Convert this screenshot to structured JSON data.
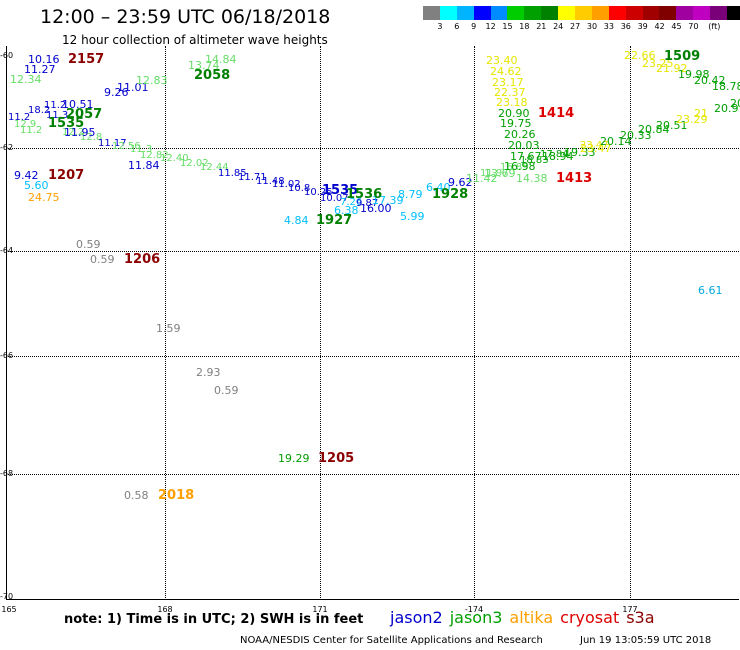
{
  "header": {
    "title": "12:00 – 23:59 UTC 06/18/2018",
    "subtitle": "12 hour collection of altimeter wave heights"
  },
  "colorbar": {
    "colors": [
      "#808080",
      "#00ffff",
      "#00b4ff",
      "#0000ff",
      "#008cff",
      "#00cd00",
      "#00a000",
      "#008200",
      "#ffff00",
      "#ffcc00",
      "#ffa000",
      "#ff0000",
      "#cd0000",
      "#a00000",
      "#800000",
      "#a000a0",
      "#c000c0",
      "#7a007a",
      "#000000"
    ],
    "labels": [
      "3",
      "6",
      "9",
      "12",
      "15",
      "18",
      "21",
      "24",
      "27",
      "30",
      "33",
      "36",
      "39",
      "42",
      "45",
      "70",
      "(ft)"
    ]
  },
  "axes": {
    "lat_labels": [
      "-60",
      "-62",
      "-64",
      "-66",
      "-68",
      "-70"
    ],
    "lon_labels": [
      "165",
      "168",
      "171",
      "-174",
      "177"
    ]
  },
  "observations": [
    {
      "t": "10.16",
      "c": "#0000cc",
      "s": "o1"
    },
    {
      "t": "11.27",
      "c": "#0000cc",
      "s": "o2"
    },
    {
      "t": "12.34",
      "c": "#66dd66",
      "s": "o3"
    },
    {
      "t": "11.01",
      "c": "#0000cc",
      "s": "o4"
    },
    {
      "t": "9.26",
      "c": "#0000cc",
      "s": "o5"
    },
    {
      "t": "12.83",
      "c": "#66dd66",
      "s": "o6"
    },
    {
      "t": "14.84",
      "c": "#66dd66",
      "s": "o7"
    },
    {
      "t": "13.74",
      "c": "#66dd66",
      "s": "o8"
    },
    {
      "t": "10.51",
      "c": "#0000cc",
      "s": "o9"
    },
    {
      "t": "11.95",
      "c": "#0000cc",
      "s": "o10"
    },
    {
      "t": "9.42",
      "c": "#0000cc",
      "s": "o11"
    },
    {
      "t": "5.60",
      "c": "#00bfff",
      "s": "o12"
    },
    {
      "t": "24.75",
      "c": "#ffa000",
      "s": "o13"
    },
    {
      "t": "0.59",
      "c": "#808080",
      "s": "o14"
    },
    {
      "t": "0.59",
      "c": "#808080",
      "s": "o15"
    },
    {
      "t": "1.59",
      "c": "#808080",
      "s": "o16"
    },
    {
      "t": "2.93",
      "c": "#808080",
      "s": "o17"
    },
    {
      "t": "0.59",
      "c": "#808080",
      "s": "o18"
    },
    {
      "t": "19.29",
      "c": "#00a000",
      "s": "o19"
    },
    {
      "t": "0.58",
      "c": "#808080",
      "s": "o20"
    },
    {
      "t": "4.84",
      "c": "#00bfff",
      "s": "o21"
    },
    {
      "t": "6.38",
      "c": "#00bfff",
      "s": "o22"
    },
    {
      "t": "8.79",
      "c": "#00bfff",
      "s": "o23"
    },
    {
      "t": "5.99",
      "c": "#00bfff",
      "s": "o24"
    },
    {
      "t": "6.40",
      "c": "#00bfff",
      "s": "o25"
    },
    {
      "t": "9.62",
      "c": "#0000cc",
      "s": "o26"
    },
    {
      "t": "11.42",
      "c": "#66dd66",
      "s": "o27"
    },
    {
      "t": "13.69",
      "c": "#66dd66",
      "s": "o28"
    },
    {
      "t": "23.40",
      "c": "#e6e600",
      "s": "o29"
    },
    {
      "t": "24.62",
      "c": "#e6e600",
      "s": "o30"
    },
    {
      "t": "23.17",
      "c": "#e6e600",
      "s": "o31"
    },
    {
      "t": "22.37",
      "c": "#e6e600",
      "s": "o32"
    },
    {
      "t": "23.18",
      "c": "#e6e600",
      "s": "o33"
    },
    {
      "t": "20.90",
      "c": "#00a000",
      "s": "o34"
    },
    {
      "t": "19.75",
      "c": "#00a000",
      "s": "o35"
    },
    {
      "t": "20.26",
      "c": "#00a000",
      "s": "o36"
    },
    {
      "t": "20.03",
      "c": "#00a000",
      "s": "o37"
    },
    {
      "t": "17.67",
      "c": "#00a000",
      "s": "o38"
    },
    {
      "t": "16.98",
      "c": "#00a000",
      "s": "o39"
    },
    {
      "t": "14.38",
      "c": "#66dd66",
      "s": "o40"
    },
    {
      "t": "18.94",
      "c": "#00a000",
      "s": "o41"
    },
    {
      "t": "19.33",
      "c": "#00a000",
      "s": "o42"
    },
    {
      "t": "23.47",
      "c": "#e6e600",
      "s": "o43"
    },
    {
      "t": "20.14",
      "c": "#00a000",
      "s": "o44"
    },
    {
      "t": "20.33",
      "c": "#00a000",
      "s": "o45"
    },
    {
      "t": "20.84",
      "c": "#00a000",
      "s": "o46"
    },
    {
      "t": "20.51",
      "c": "#00a000",
      "s": "o47"
    },
    {
      "t": "23.29",
      "c": "#e6e600",
      "s": "o48"
    },
    {
      "t": "21",
      "c": "#e6e600",
      "s": "o49"
    },
    {
      "t": "20.9",
      "c": "#00a000",
      "s": "o50"
    },
    {
      "t": "20",
      "c": "#00a000",
      "s": "o51"
    },
    {
      "t": "22.66",
      "c": "#e6e600",
      "s": "o52"
    },
    {
      "t": "23.25",
      "c": "#e6e600",
      "s": "o53"
    },
    {
      "t": "21.92",
      "c": "#e6e600",
      "s": "o54"
    },
    {
      "t": "19.98",
      "c": "#00a000",
      "s": "o55"
    },
    {
      "t": "20.42",
      "c": "#00a000",
      "s": "o56"
    },
    {
      "t": "18.78",
      "c": "#00a000",
      "s": "o57"
    },
    {
      "t": "6.61",
      "c": "#00a8e0",
      "s": "o58"
    },
    {
      "t": "11.84",
      "c": "#0000cc",
      "s": "o59"
    },
    {
      "t": "17.39",
      "c": "#00bfff",
      "s": "o60"
    },
    {
      "t": "16.00",
      "c": "#0000cc",
      "s": "o61"
    }
  ],
  "times": [
    {
      "t": "2157",
      "c": "#8b0000",
      "s": "t1"
    },
    {
      "t": "2058",
      "c": "#008000",
      "s": "t2"
    },
    {
      "t": "2057",
      "c": "#008000",
      "s": "t3"
    },
    {
      "t": "1535",
      "c": "#008000",
      "s": "t4"
    },
    {
      "t": "1207",
      "c": "#8b0000",
      "s": "t5"
    },
    {
      "t": "1206",
      "c": "#8b0000",
      "s": "t6"
    },
    {
      "t": "1205",
      "c": "#8b0000",
      "s": "t7"
    },
    {
      "t": "2018",
      "c": "#ffa000",
      "s": "t8"
    },
    {
      "t": "1535",
      "c": "#0000cc",
      "s": "t9"
    },
    {
      "t": "1536",
      "c": "#008000",
      "s": "t10"
    },
    {
      "t": "1927",
      "c": "#008000",
      "s": "t11"
    },
    {
      "t": "1928",
      "c": "#008000",
      "s": "t12"
    },
    {
      "t": "1414",
      "c": "#dd0000",
      "s": "t13"
    },
    {
      "t": "1413",
      "c": "#dd0000",
      "s": "t14"
    },
    {
      "t": "1509",
      "c": "#008000",
      "s": "t15"
    }
  ],
  "footer": {
    "note": "note:  1) Time is in UTC;  2) SWH is in feet",
    "satellites": [
      {
        "name": "jason2",
        "color": "#0000cc"
      },
      {
        "name": "jason3",
        "color": "#00a000"
      },
      {
        "name": "altika",
        "color": "#ffa000"
      },
      {
        "name": "cryosat",
        "color": "#dd0000"
      },
      {
        "name": "s3a",
        "color": "#8b0000"
      }
    ],
    "credit": "NOAA/NESDIS Center for Satellite Applications and Research",
    "timestamp": "Jun 19 13:05:59 UTC 2018"
  }
}
